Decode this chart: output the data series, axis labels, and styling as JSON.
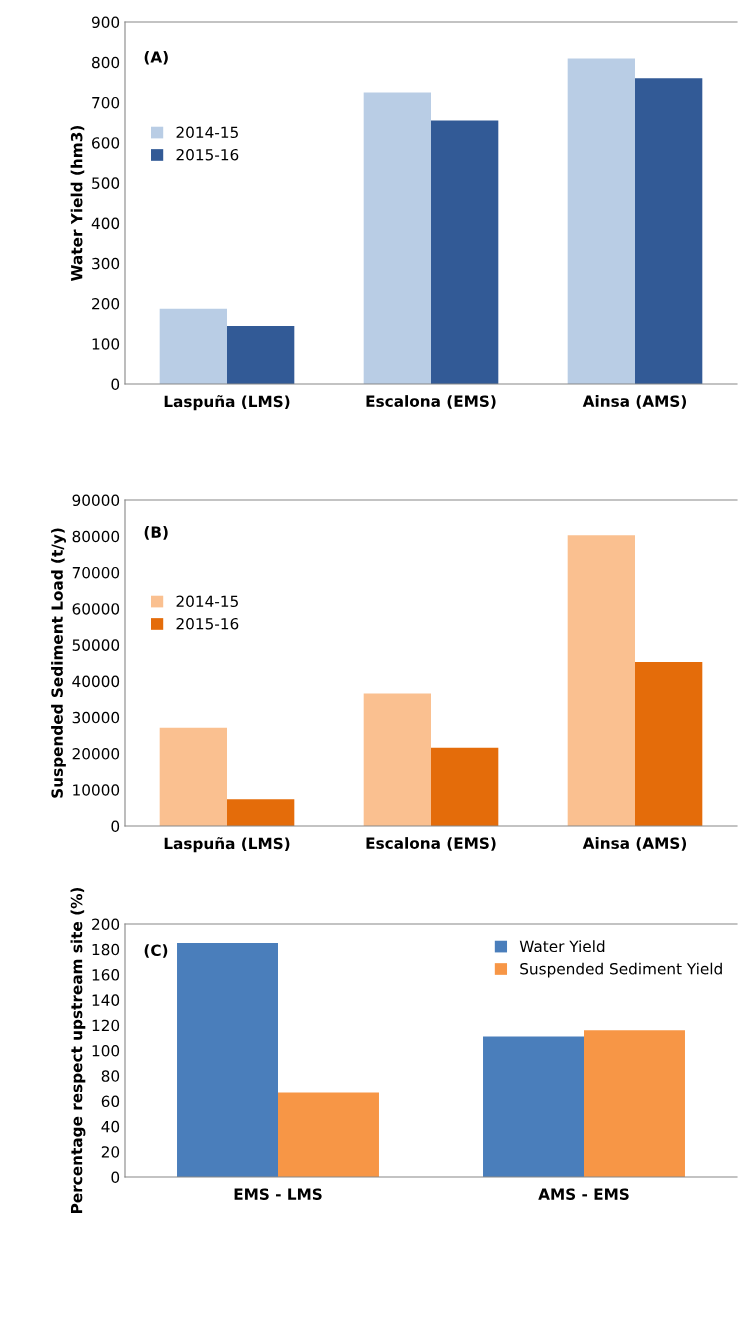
{
  "chart_data": [
    {
      "type": "bar",
      "ylabel": "Water Yield (hm3)",
      "categories": [
        "Laspuña (LMS)",
        "Escalona (EMS)",
        "Ainsa (AMS)"
      ],
      "series": [
        {
          "name": "2014-15",
          "color": "#b9cde5",
          "values": [
            187,
            725,
            809
          ]
        },
        {
          "name": "2015-16",
          "color": "#325a96",
          "values": [
            144,
            655,
            760
          ]
        }
      ],
      "ylim": [
        0,
        900
      ],
      "yticks": [
        0,
        100,
        200,
        300,
        400,
        500,
        600,
        700,
        800,
        900
      ],
      "legend": "left",
      "annotations": [
        "(A)"
      ]
    },
    {
      "type": "bar",
      "ylabel": "Suspended Sediment Load (t/y)",
      "categories": [
        "Laspuña (LMS)",
        "Escalona (EMS)",
        "Ainsa (AMS)"
      ],
      "series": [
        {
          "name": "2014-15",
          "color": "#fac090",
          "values": [
            27100,
            36600,
            80300
          ]
        },
        {
          "name": "2015-16",
          "color": "#e46c0a",
          "values": [
            7400,
            21600,
            45300
          ]
        }
      ],
      "ylim": [
        0,
        90000
      ],
      "yticks": [
        0,
        10000,
        20000,
        30000,
        40000,
        50000,
        60000,
        70000,
        80000,
        90000
      ],
      "legend": "left",
      "annotations": [
        "(B)"
      ]
    },
    {
      "type": "bar",
      "ylabel": "Percentage respect upstream site (%)",
      "categories": [
        "EMS - LMS",
        "AMS - EMS"
      ],
      "series": [
        {
          "name": "Water Yield",
          "color": "#4a7ebb",
          "values": [
            185,
            111
          ]
        },
        {
          "name": "Suspended Sediment Yield",
          "color": "#f79646",
          "values": [
            66.7,
            116
          ]
        }
      ],
      "ylim": [
        0,
        200
      ],
      "yticks": [
        0,
        20,
        40,
        60,
        80,
        100,
        120,
        140,
        160,
        180,
        200
      ],
      "legend": "top right",
      "annotations": [
        "(C)"
      ]
    }
  ]
}
